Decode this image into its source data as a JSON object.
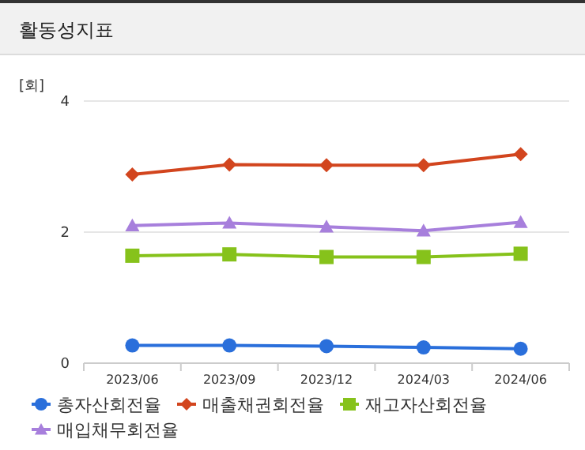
{
  "chart_data": {
    "type": "line",
    "title": "활동성지표",
    "ylabel": "[회]",
    "categories": [
      "2023/06",
      "2023/09",
      "2023/12",
      "2024/03",
      "2024/06"
    ],
    "series": [
      {
        "name": "총자산회전율",
        "color": "#2a6fdb",
        "marker": "circle",
        "values": [
          0.27,
          0.27,
          0.26,
          0.24,
          0.22
        ]
      },
      {
        "name": "매출채권회전율",
        "color": "#d2451e",
        "marker": "diamond",
        "values": [
          2.88,
          3.03,
          3.02,
          3.02,
          3.19
        ]
      },
      {
        "name": "재고자산회전율",
        "color": "#86c21b",
        "marker": "square",
        "values": [
          1.64,
          1.66,
          1.62,
          1.62,
          1.67
        ]
      },
      {
        "name": "매입채무회전율",
        "color": "#a77fdc",
        "marker": "triangle",
        "values": [
          2.1,
          2.14,
          2.08,
          2.02,
          2.15
        ]
      }
    ],
    "ylim": [
      0,
      4
    ],
    "yticks": [
      0,
      2,
      4
    ],
    "grid": "y",
    "legend": "bottom"
  }
}
